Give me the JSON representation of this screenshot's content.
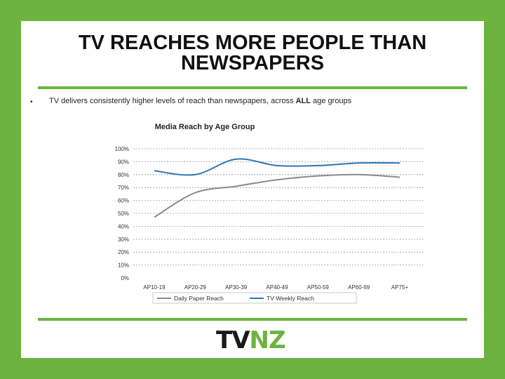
{
  "slide": {
    "title": "TV REACHES MORE PEOPLE THAN NEWSPAPERS",
    "bullet": {
      "prefix": "TV delivers consistently higher levels of reach than newspapers, across",
      "emphasis": "ALL",
      "suffix": "age groups"
    },
    "logo": {
      "part1": "TV",
      "part2": "NZ"
    }
  },
  "colors": {
    "background": "#6db33f",
    "daily_paper": "#8a8a8a",
    "tv_weekly": "#2e74b5"
  },
  "chart_data": {
    "type": "line",
    "title": "Media Reach by Age Group",
    "categories": [
      "AP10-19",
      "AP20-29",
      "AP30-39",
      "AP40-49",
      "AP50-59",
      "AP60-69",
      "AP75+"
    ],
    "series": [
      {
        "name": "Daily Paper Reach",
        "values": [
          47,
          66,
          71,
          76,
          79,
          80,
          78
        ]
      },
      {
        "name": "TV Weekly Reach",
        "values": [
          83,
          80,
          92,
          87,
          87,
          89,
          89
        ]
      }
    ],
    "yticks": [
      "0%",
      "10%",
      "20%",
      "30%",
      "40%",
      "50%",
      "60%",
      "70%",
      "80%",
      "90%",
      "100%"
    ],
    "ylim": [
      0,
      100
    ],
    "grid": true,
    "legend": "bottom"
  }
}
